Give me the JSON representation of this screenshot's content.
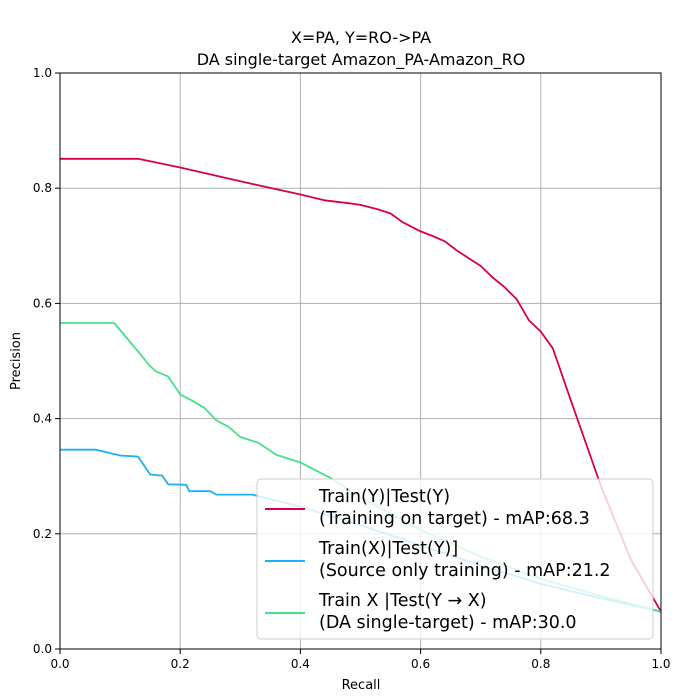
{
  "chart_data": {
    "type": "line",
    "title_lines": [
      "X=PA, Y=RO->PA",
      "DA single-target Amazon_PA-Amazon_RO"
    ],
    "xlabel": "Recall",
    "ylabel": "Precision",
    "xlim": [
      0,
      1
    ],
    "ylim": [
      0,
      1
    ],
    "xticks": [
      "0.0",
      "0.2",
      "0.4",
      "0.6",
      "0.8",
      "1.0"
    ],
    "yticks": [
      "0.0",
      "0.2",
      "0.4",
      "0.6",
      "0.8",
      "1.0"
    ],
    "grid": true,
    "legend_position": "lower-right",
    "series": [
      {
        "name": "Train(Y)|Test(Y)\n(Training on target) - mAP:68.3",
        "color": "#d6004f",
        "points": [
          [
            0,
            0.851
          ],
          [
            0.13,
            0.851
          ],
          [
            0.2,
            0.836
          ],
          [
            0.3,
            0.812
          ],
          [
            0.4,
            0.789
          ],
          [
            0.44,
            0.779
          ],
          [
            0.48,
            0.774
          ],
          [
            0.5,
            0.771
          ],
          [
            0.53,
            0.763
          ],
          [
            0.55,
            0.756
          ],
          [
            0.57,
            0.741
          ],
          [
            0.6,
            0.725
          ],
          [
            0.62,
            0.717
          ],
          [
            0.64,
            0.708
          ],
          [
            0.66,
            0.692
          ],
          [
            0.7,
            0.665
          ],
          [
            0.72,
            0.645
          ],
          [
            0.74,
            0.628
          ],
          [
            0.76,
            0.607
          ],
          [
            0.78,
            0.571
          ],
          [
            0.8,
            0.551
          ],
          [
            0.82,
            0.522
          ],
          [
            0.85,
            0.432
          ],
          [
            0.9,
            0.283
          ],
          [
            0.95,
            0.155
          ],
          [
            1.0,
            0.065
          ]
        ]
      },
      {
        "name": "Train(X)|Test(Y)]\n(Source only training) - mAP:21.2",
        "color": "#1ab2f0",
        "points": [
          [
            0,
            0.346
          ],
          [
            0.06,
            0.346
          ],
          [
            0.1,
            0.336
          ],
          [
            0.13,
            0.334
          ],
          [
            0.15,
            0.303
          ],
          [
            0.17,
            0.301
          ],
          [
            0.18,
            0.286
          ],
          [
            0.21,
            0.285
          ],
          [
            0.215,
            0.274
          ],
          [
            0.25,
            0.274
          ],
          [
            0.26,
            0.268
          ],
          [
            0.32,
            0.268
          ],
          [
            0.4,
            0.247
          ],
          [
            0.5,
            0.215
          ],
          [
            0.6,
            0.18
          ],
          [
            0.7,
            0.145
          ],
          [
            0.8,
            0.113
          ],
          [
            0.9,
            0.088
          ],
          [
            1.0,
            0.065
          ]
        ]
      },
      {
        "name": "Train X |Test(Y → X)\n(DA single-target) - mAP:30.0",
        "color": "#47e08a",
        "points": [
          [
            0,
            0.566
          ],
          [
            0.09,
            0.566
          ],
          [
            0.12,
            0.529
          ],
          [
            0.15,
            0.491
          ],
          [
            0.16,
            0.482
          ],
          [
            0.18,
            0.473
          ],
          [
            0.2,
            0.442
          ],
          [
            0.22,
            0.431
          ],
          [
            0.24,
            0.419
          ],
          [
            0.26,
            0.397
          ],
          [
            0.28,
            0.386
          ],
          [
            0.3,
            0.368
          ],
          [
            0.33,
            0.358
          ],
          [
            0.36,
            0.337
          ],
          [
            0.4,
            0.324
          ],
          [
            0.45,
            0.297
          ],
          [
            0.5,
            0.263
          ],
          [
            0.6,
            0.207
          ],
          [
            0.7,
            0.16
          ],
          [
            0.8,
            0.122
          ],
          [
            0.9,
            0.092
          ],
          [
            1.0,
            0.065
          ]
        ]
      }
    ]
  }
}
